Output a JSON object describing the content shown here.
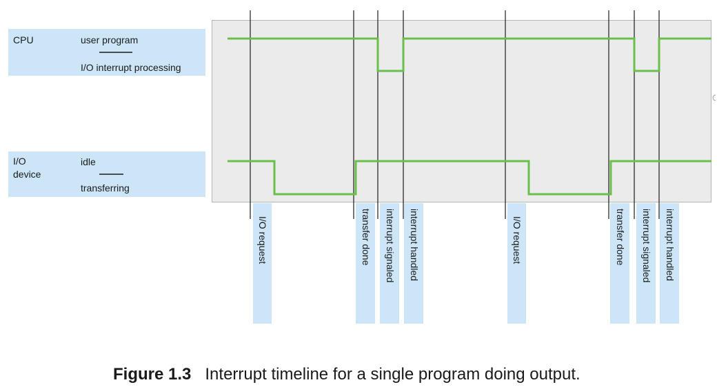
{
  "rows": {
    "cpu": {
      "label": "CPU",
      "high_state": "user program",
      "low_state": "I/O interrupt processing"
    },
    "io": {
      "label_line1": "I/O",
      "label_line2": "device",
      "high_state": "idle",
      "low_state": "transferring"
    }
  },
  "events": [
    {
      "id": "io-request-1",
      "label": "I/O request"
    },
    {
      "id": "transfer-done-1",
      "label": "transfer done"
    },
    {
      "id": "interrupt-signaled-1",
      "label": "interrupt signaled"
    },
    {
      "id": "interrupt-handled-1",
      "label": "interrupt handled"
    },
    {
      "id": "io-request-2",
      "label": "I/O request"
    },
    {
      "id": "transfer-done-2",
      "label": "transfer done"
    },
    {
      "id": "interrupt-signaled-2",
      "label": "interrupt signaled"
    },
    {
      "id": "interrupt-handled-2",
      "label": "interrupt handled"
    }
  ],
  "caption": {
    "number": "Figure 1.3",
    "text": "Interrupt timeline for a single program doing output."
  },
  "colors": {
    "signal": "#6abf4b",
    "label_bg": "#cde6f7",
    "plot_bg": "#ebebeb"
  }
}
